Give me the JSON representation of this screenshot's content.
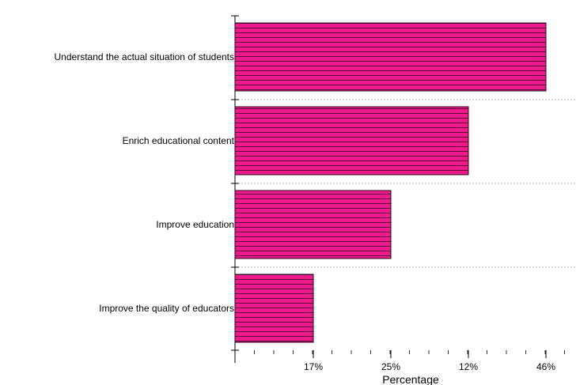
{
  "chart_data": {
    "type": "bar",
    "orientation": "horizontal",
    "categories": [
      "Understand the actual situation of students",
      "Enrich educational content",
      "Improve education",
      "Improve the quality of educators"
    ],
    "values": [
      46,
      12,
      25,
      17
    ],
    "value_order_note_free": true,
    "x_tick_labels": [
      "17%",
      "25%",
      "12%",
      "46%"
    ],
    "xlabel": "Percentage",
    "ylabel": "",
    "title": "",
    "grid": "horizontal dashed separators between categories",
    "bar_color": "#ee1a8c",
    "bar_pattern": "horizontal lines",
    "bar_pattern_color": "#3a0a28"
  }
}
